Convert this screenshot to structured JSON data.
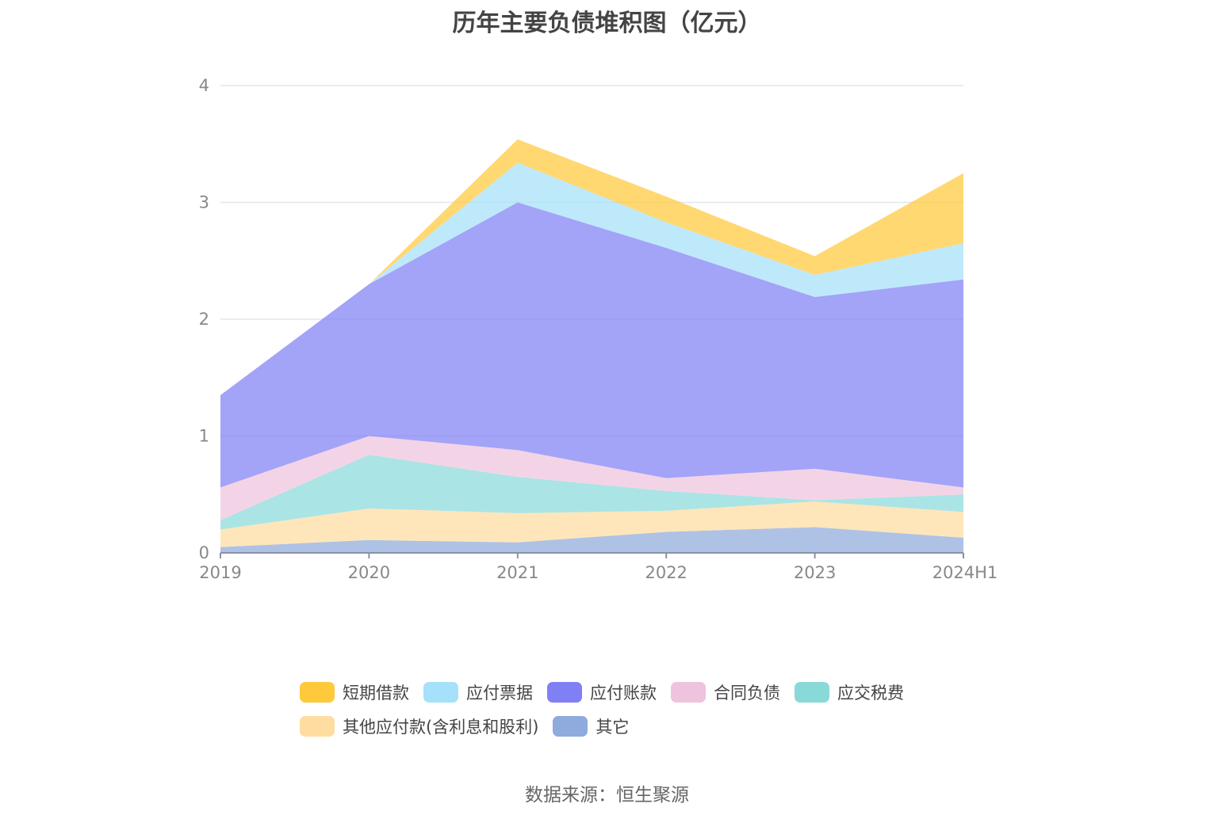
{
  "source_text": "数据来源：恒生聚源",
  "chart_data": {
    "type": "area",
    "stacked": true,
    "title": "历年主要负债堆积图（亿元）",
    "categories": [
      "2019",
      "2020",
      "2021",
      "2022",
      "2023",
      "2024H1"
    ],
    "ylim": [
      0,
      4
    ],
    "yticks": [
      "0",
      "1",
      "2",
      "3",
      "4"
    ],
    "grid": true,
    "legend_position": "bottom",
    "series": [
      {
        "name": "其它",
        "color": "#8faadc",
        "values": [
          0.05,
          0.11,
          0.09,
          0.18,
          0.22,
          0.13
        ]
      },
      {
        "name": "其他应付款(含利息和股利)",
        "color": "#ffdca0",
        "values": [
          0.15,
          0.27,
          0.25,
          0.18,
          0.22,
          0.22
        ]
      },
      {
        "name": "应交税费",
        "color": "#8ad9d9",
        "values": [
          0.08,
          0.46,
          0.31,
          0.17,
          0.01,
          0.15
        ]
      },
      {
        "name": "合同负债",
        "color": "#eec3dd",
        "values": [
          0.28,
          0.16,
          0.23,
          0.11,
          0.27,
          0.06
        ]
      },
      {
        "name": "应付账款",
        "color": "#8080f5",
        "values": [
          0.79,
          1.3,
          2.12,
          1.97,
          1.47,
          1.78
        ]
      },
      {
        "name": "应付票据",
        "color": "#a5e1fa",
        "values": [
          0.0,
          0.0,
          0.34,
          0.22,
          0.19,
          0.31
        ]
      },
      {
        "name": "短期借款",
        "color": "#ffc93c",
        "values": [
          0.0,
          0.0,
          0.2,
          0.22,
          0.16,
          0.6
        ]
      }
    ],
    "legend_order": [
      "短期借款",
      "应付票据",
      "应付账款",
      "合同负债",
      "应交税费",
      "其他应付款(含利息和股利)",
      "其它"
    ]
  }
}
